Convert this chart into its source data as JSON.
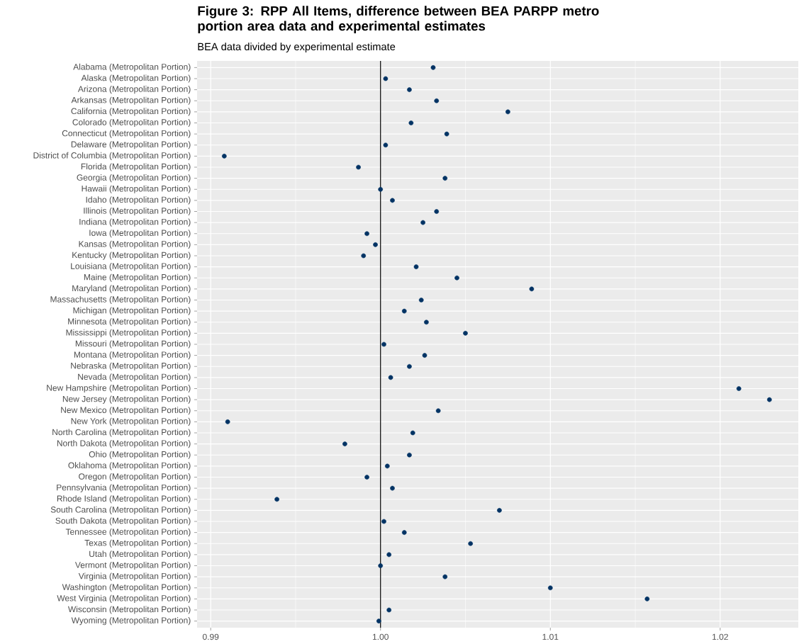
{
  "chart_data": {
    "type": "scatter",
    "orientation": "horizontal",
    "title": "Figure 3: RPP All Items, difference between BEA PARPP metro portion area data and experimental estimates",
    "subtitle": "BEA data divided by experimental estimate",
    "categories": [
      "Alabama (Metropolitan Portion)",
      "Alaska (Metropolitan Portion)",
      "Arizona (Metropolitan Portion)",
      "Arkansas (Metropolitan Portion)",
      "California (Metropolitan Portion)",
      "Colorado (Metropolitan Portion)",
      "Connecticut (Metropolitan Portion)",
      "Delaware (Metropolitan Portion)",
      "District of Columbia (Metropolitan Portion)",
      "Florida (Metropolitan Portion)",
      "Georgia (Metropolitan Portion)",
      "Hawaii (Metropolitan Portion)",
      "Idaho (Metropolitan Portion)",
      "Illinois (Metropolitan Portion)",
      "Indiana (Metropolitan Portion)",
      "Iowa (Metropolitan Portion)",
      "Kansas (Metropolitan Portion)",
      "Kentucky (Metropolitan Portion)",
      "Louisiana (Metropolitan Portion)",
      "Maine (Metropolitan Portion)",
      "Maryland (Metropolitan Portion)",
      "Massachusetts (Metropolitan Portion)",
      "Michigan (Metropolitan Portion)",
      "Minnesota (Metropolitan Portion)",
      "Mississippi (Metropolitan Portion)",
      "Missouri (Metropolitan Portion)",
      "Montana (Metropolitan Portion)",
      "Nebraska (Metropolitan Portion)",
      "Nevada (Metropolitan Portion)",
      "New Hampshire (Metropolitan Portion)",
      "New Jersey (Metropolitan Portion)",
      "New Mexico (Metropolitan Portion)",
      "New York (Metropolitan Portion)",
      "North Carolina (Metropolitan Portion)",
      "North Dakota (Metropolitan Portion)",
      "Ohio (Metropolitan Portion)",
      "Oklahoma (Metropolitan Portion)",
      "Oregon (Metropolitan Portion)",
      "Pennsylvania (Metropolitan Portion)",
      "Rhode Island (Metropolitan Portion)",
      "South Carolina (Metropolitan Portion)",
      "South Dakota (Metropolitan Portion)",
      "Tennessee (Metropolitan Portion)",
      "Texas (Metropolitan Portion)",
      "Utah (Metropolitan Portion)",
      "Vermont (Metropolitan Portion)",
      "Virginia (Metropolitan Portion)",
      "Washington (Metropolitan Portion)",
      "West Virginia (Metropolitan Portion)",
      "Wisconsin (Metropolitan Portion)",
      "Wyoming (Metropolitan Portion)"
    ],
    "values": [
      1.0031,
      1.0003,
      1.0017,
      1.0033,
      1.0075,
      1.0018,
      1.0039,
      1.0003,
      0.9908,
      0.9987,
      1.0038,
      1.0,
      1.0007,
      1.0033,
      1.0025,
      0.9992,
      0.9997,
      0.999,
      1.0021,
      1.0045,
      1.0089,
      1.0024,
      1.0014,
      1.0027,
      1.005,
      1.0002,
      1.0026,
      1.0017,
      1.0006,
      1.0211,
      1.0229,
      1.0034,
      0.991,
      1.0019,
      0.9979,
      1.0017,
      1.0004,
      0.9992,
      1.0007,
      0.9939,
      1.007,
      1.0002,
      1.0014,
      1.0053,
      1.0005,
      1.0,
      1.0038,
      1.01,
      1.0157,
      1.0005,
      0.9999
    ],
    "color": "#023364",
    "xlim": [
      0.9892,
      1.0246
    ],
    "xticks": [
      0.99,
      {
        "value": 1.0,
        "label": "1.00"
      },
      1.01,
      1.02,
      {
        "value": 0.995,
        "label": null
      },
      {
        "value": 1.005,
        "label": null
      },
      {
        "value": 1.015,
        "label": null
      }
    ],
    "grid": true,
    "ref_lines": [
      {
        "axis": "x",
        "value": 1.0,
        "color": "#000000"
      }
    ]
  }
}
